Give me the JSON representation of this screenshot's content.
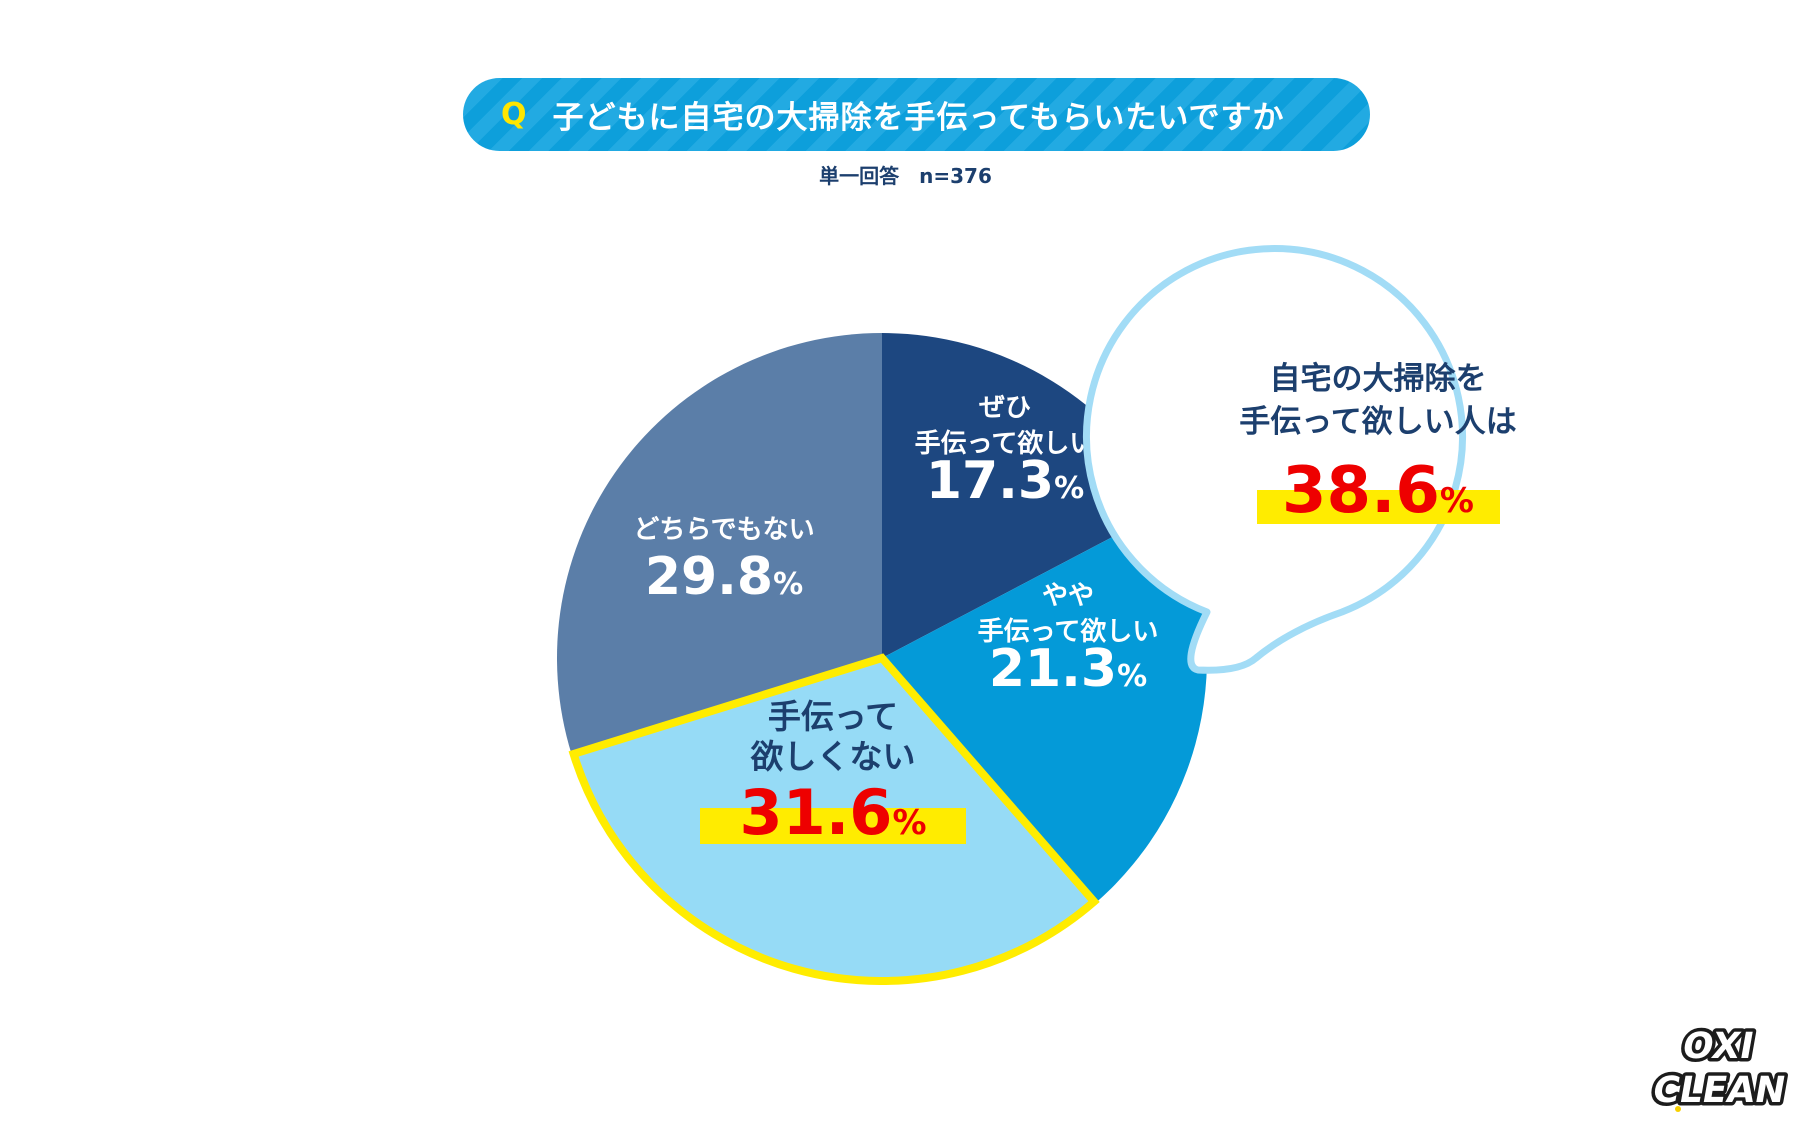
{
  "question": {
    "mark": "Q",
    "text": "子どもに自宅の大掃除を手伝ってもらいたいですか"
  },
  "subnote": "単一回答　n=376",
  "chart_data": {
    "type": "pie",
    "title": "子どもに自宅の大掃除を手伝ってもらいたいですか",
    "n": 376,
    "slices": [
      {
        "label_lines": [
          "ぜひ",
          "手伝って欲しい"
        ],
        "value": 17.3,
        "color": "#1d4780"
      },
      {
        "label_lines": [
          "やや",
          "手伝って欲しい"
        ],
        "value": 21.3,
        "color": "#049ad8"
      },
      {
        "label_lines": [
          "手伝って",
          "欲しくない"
        ],
        "value": 31.6,
        "color": "#96dbf6",
        "highlight": true
      },
      {
        "label_lines": [
          "どちらでもない"
        ],
        "value": 29.8,
        "color": "#5b7ea8"
      }
    ],
    "unit": "%"
  },
  "callout": {
    "lines": [
      "自宅の大掃除を",
      "手伝って欲しい人は"
    ],
    "value": "38.6",
    "unit": "%"
  },
  "colors": {
    "banner": "#0d9fdb",
    "navy_text": "#1c3f6e",
    "highlight_yellow": "#ffec00",
    "accent_red": "#ee0000",
    "callout_border": "#a2dcf6"
  },
  "logo": {
    "line1": "OXI",
    "line2": "CLEAN"
  }
}
